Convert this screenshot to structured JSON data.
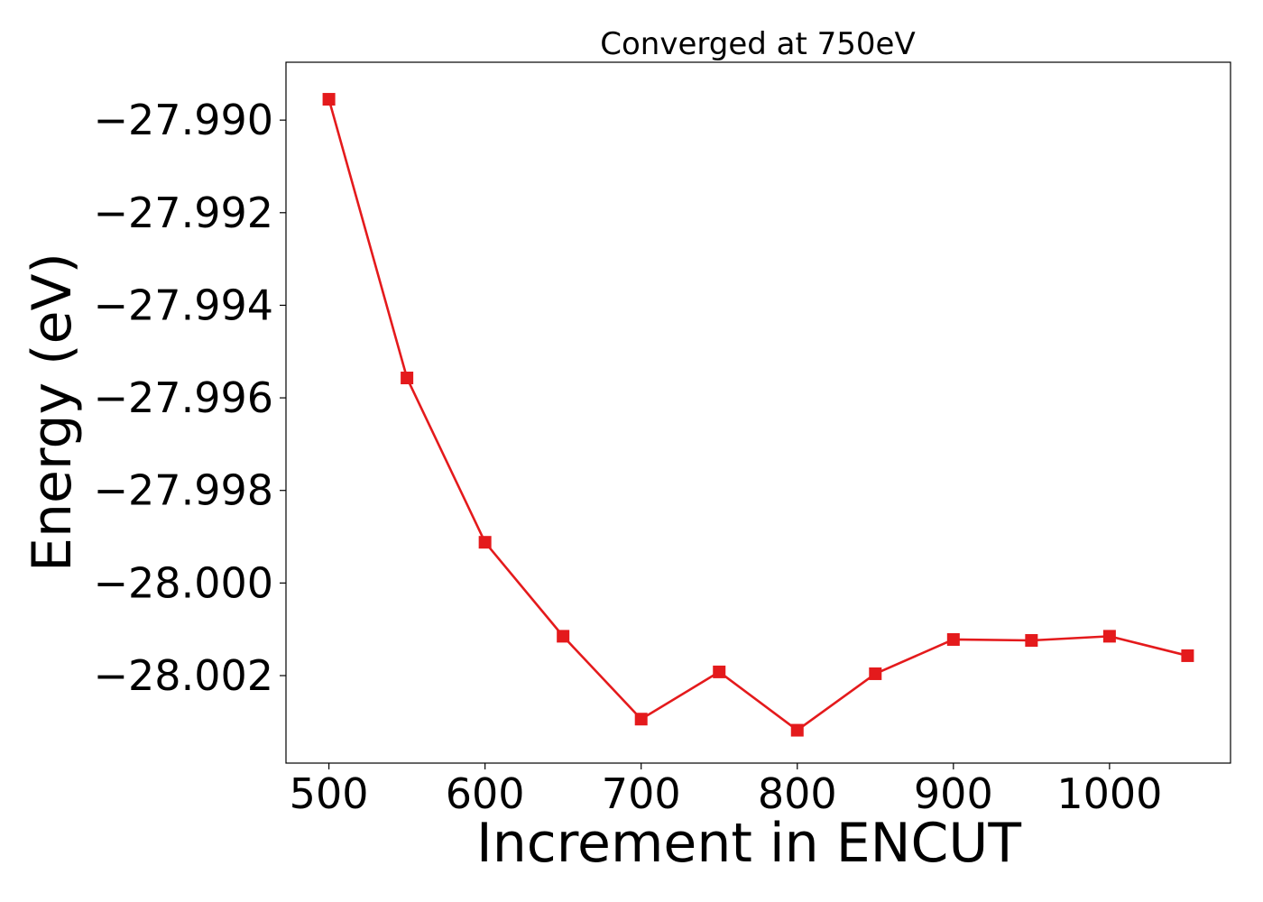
{
  "chart_data": {
    "type": "line",
    "title": "Converged at 750eV",
    "xlabel": "Increment in ENCUT",
    "ylabel": "Energy (eV)",
    "xlim": [
      472.5,
      1077.5
    ],
    "ylim": [
      -28.00389,
      -27.98875
    ],
    "xticks": [
      500,
      600,
      700,
      800,
      900,
      1000
    ],
    "xtick_labels": [
      "500",
      "600",
      "700",
      "800",
      "900",
      "1000"
    ],
    "yticks": [
      -27.99,
      -27.992,
      -27.994,
      -27.996,
      -27.998,
      -28.0,
      -28.002
    ],
    "ytick_labels": [
      "−27.990",
      "−27.992",
      "−27.994",
      "−27.996",
      "−27.998",
      "−28.000",
      "−28.002"
    ],
    "grid": false,
    "marker": "square",
    "color": "#e41a1c",
    "series": [
      {
        "x": [
          500,
          550,
          600,
          650,
          700,
          750,
          800,
          850,
          900,
          950,
          1000,
          1050
        ],
        "y": [
          -27.98955,
          -27.99557,
          -27.99912,
          -28.00115,
          -28.00294,
          -28.00192,
          -28.00318,
          -28.00196,
          -28.00122,
          -28.00124,
          -28.00115,
          -28.00157
        ]
      }
    ]
  }
}
